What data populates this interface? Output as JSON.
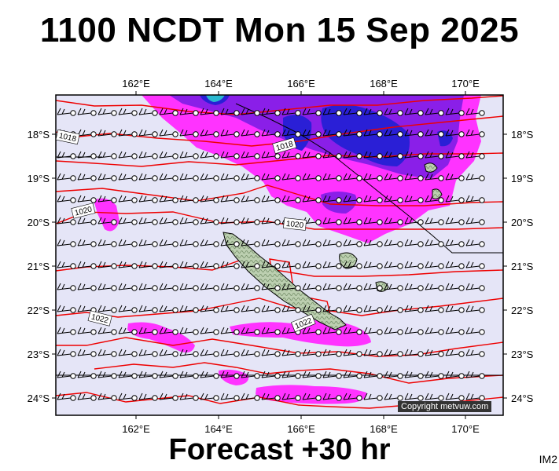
{
  "title": "1100 NCDT Mon 15 Sep 2025",
  "footer": "Forecast +30 hr",
  "image_code": "IM2",
  "copyright": "Copyright metvuw.com",
  "lon_labels": [
    "162°E",
    "164°E",
    "166°E",
    "168°E",
    "170°E"
  ],
  "lat_labels": [
    "18°S",
    "19°S",
    "20°S",
    "21°S",
    "22°S",
    "23°S",
    "24°S"
  ],
  "isobar_labels": [
    "1018",
    "1018",
    "1020",
    "1020",
    "1022",
    "1022"
  ],
  "colors": {
    "ocean": "#e5e5f7",
    "rain_light": "#ff33ff",
    "rain_medium": "#8a1fe8",
    "rain_heavy": "#2a1fd6",
    "isobar": "#ee0000",
    "land": "#bccfb0"
  }
}
